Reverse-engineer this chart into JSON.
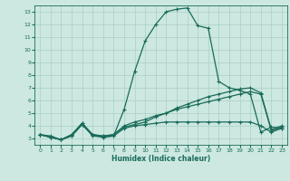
{
  "xlabel": "Humidex (Indice chaleur)",
  "xlim": [
    -0.5,
    23.5
  ],
  "ylim": [
    2.5,
    13.5
  ],
  "bg_color": "#cce8e0",
  "line_color": "#1a6b5a",
  "grid_color": "#aacfc5",
  "xticks": [
    0,
    1,
    2,
    3,
    4,
    5,
    6,
    7,
    8,
    9,
    10,
    11,
    12,
    13,
    14,
    15,
    16,
    17,
    18,
    19,
    20,
    21,
    22,
    23
  ],
  "yticks": [
    3,
    4,
    5,
    6,
    7,
    8,
    9,
    10,
    11,
    12,
    13
  ],
  "line1_x": [
    0,
    1,
    2,
    3,
    4,
    5,
    6,
    7,
    8,
    9,
    10,
    11,
    12,
    13,
    14,
    15,
    16,
    17,
    18,
    19,
    20,
    21,
    22,
    23
  ],
  "line1_y": [
    3.3,
    3.1,
    2.9,
    3.2,
    4.1,
    3.2,
    3.1,
    3.2,
    5.3,
    8.3,
    10.7,
    12.0,
    13.0,
    13.2,
    13.3,
    11.9,
    11.7,
    7.5,
    7.0,
    6.8,
    6.5,
    3.5,
    3.9,
    3.8
  ],
  "line2_x": [
    0,
    1,
    2,
    3,
    4,
    5,
    6,
    7,
    8,
    9,
    10,
    11,
    12,
    13,
    14,
    15,
    16,
    17,
    18,
    19,
    20,
    21,
    22,
    23
  ],
  "line2_y": [
    3.3,
    3.1,
    2.9,
    3.2,
    4.1,
    3.3,
    3.1,
    3.2,
    3.8,
    4.0,
    4.1,
    4.2,
    4.3,
    4.3,
    4.3,
    4.3,
    4.3,
    4.3,
    4.3,
    4.3,
    4.3,
    4.0,
    3.5,
    3.8
  ],
  "line3_x": [
    0,
    1,
    2,
    3,
    4,
    5,
    6,
    7,
    8,
    9,
    10,
    11,
    12,
    13,
    14,
    15,
    16,
    17,
    18,
    19,
    20,
    21,
    22,
    23
  ],
  "line3_y": [
    3.3,
    3.1,
    2.9,
    3.3,
    4.2,
    3.3,
    3.2,
    3.3,
    4.0,
    4.3,
    4.5,
    4.8,
    5.0,
    5.3,
    5.5,
    5.7,
    5.9,
    6.1,
    6.3,
    6.5,
    6.7,
    6.5,
    3.6,
    3.9
  ],
  "line4_x": [
    0,
    1,
    2,
    3,
    4,
    5,
    6,
    7,
    8,
    9,
    10,
    11,
    12,
    13,
    14,
    15,
    16,
    17,
    18,
    19,
    20,
    21,
    22,
    23
  ],
  "line4_y": [
    3.3,
    3.2,
    2.9,
    3.3,
    4.2,
    3.3,
    3.2,
    3.3,
    3.9,
    4.1,
    4.3,
    4.7,
    5.0,
    5.4,
    5.7,
    6.0,
    6.3,
    6.5,
    6.7,
    6.9,
    7.0,
    6.6,
    3.7,
    4.0
  ]
}
